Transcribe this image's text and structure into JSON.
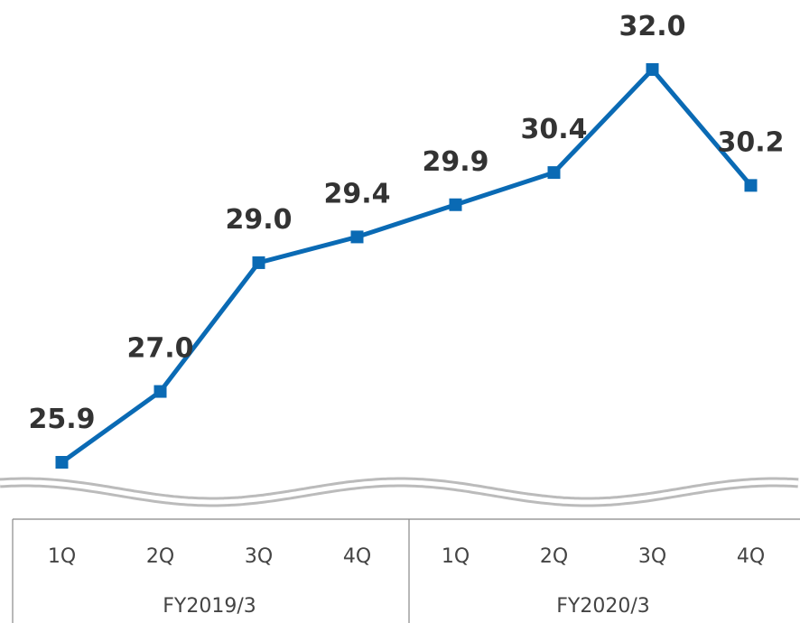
{
  "chart_data": {
    "type": "line",
    "categories": [
      "1Q",
      "2Q",
      "3Q",
      "4Q",
      "1Q",
      "2Q",
      "3Q",
      "4Q"
    ],
    "groups": [
      "FY2019/3",
      "FY2020/3"
    ],
    "series": [
      {
        "color": "#0a6ab4",
        "values": [
          25.9,
          27.0,
          29.0,
          29.4,
          29.9,
          30.4,
          32.0,
          30.2
        ],
        "value_labels": [
          "25.9",
          "27.0",
          "29.0",
          "29.4",
          "29.9",
          "30.4",
          "32.0",
          "30.2"
        ]
      }
    ]
  }
}
